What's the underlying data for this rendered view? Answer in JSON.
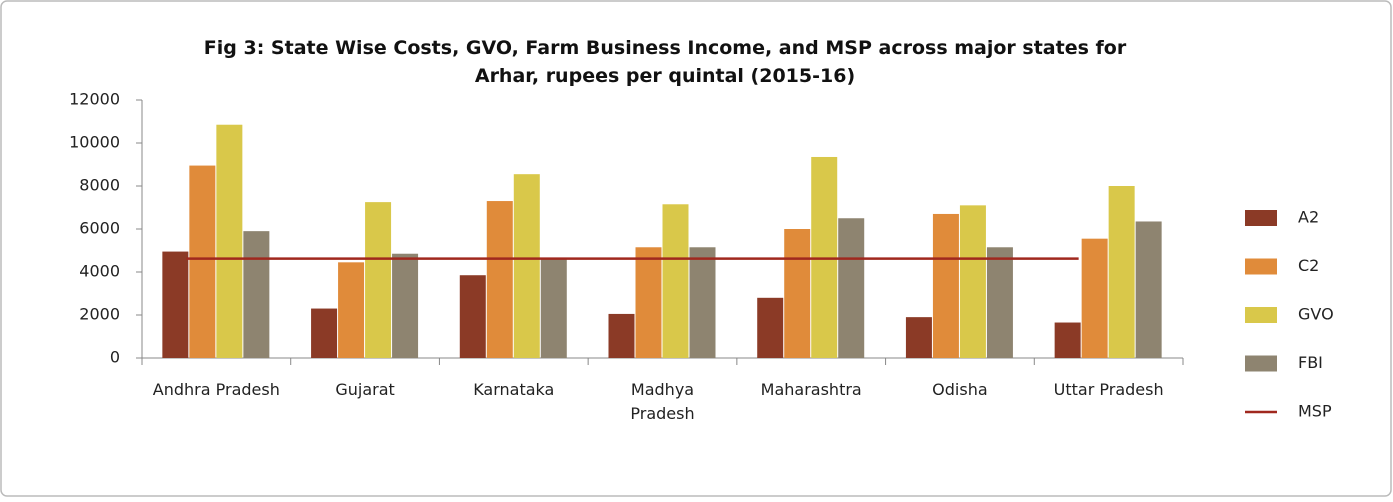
{
  "chart_data": {
    "type": "bar",
    "title": "Fig 3: State Wise Costs, GVO, Farm Business Income, and MSP across major states for Arhar, rupees per quintal (2015-16)",
    "categories": [
      "Andhra Pradesh",
      "Gujarat",
      "Karnataka",
      "Madhya Pradesh",
      "Maharashtra",
      "Odisha",
      "Uttar Pradesh"
    ],
    "series": [
      {
        "name": "A2",
        "color": "#8b3a26",
        "values": [
          4950,
          2300,
          3850,
          2050,
          2800,
          1900,
          1650
        ]
      },
      {
        "name": "C2",
        "color": "#e08b3a",
        "values": [
          8950,
          4450,
          7300,
          5150,
          6000,
          6700,
          5550
        ]
      },
      {
        "name": "GVO",
        "color": "#d9c84a",
        "values": [
          10850,
          7250,
          8550,
          7150,
          9350,
          7100,
          8000
        ]
      },
      {
        "name": "FBI",
        "color": "#8e8470",
        "values": [
          5900,
          4850,
          4650,
          5150,
          6500,
          5150,
          6350
        ]
      },
      {
        "name": "MSP",
        "color": "#a0281e",
        "type": "line",
        "values": [
          4625,
          4625,
          4625,
          4625,
          4625,
          4625,
          4625
        ]
      }
    ],
    "ylim": [
      0,
      12000
    ],
    "yticks": [
      0,
      2000,
      4000,
      6000,
      8000,
      10000,
      12000
    ],
    "legend": "right",
    "grid": false
  }
}
